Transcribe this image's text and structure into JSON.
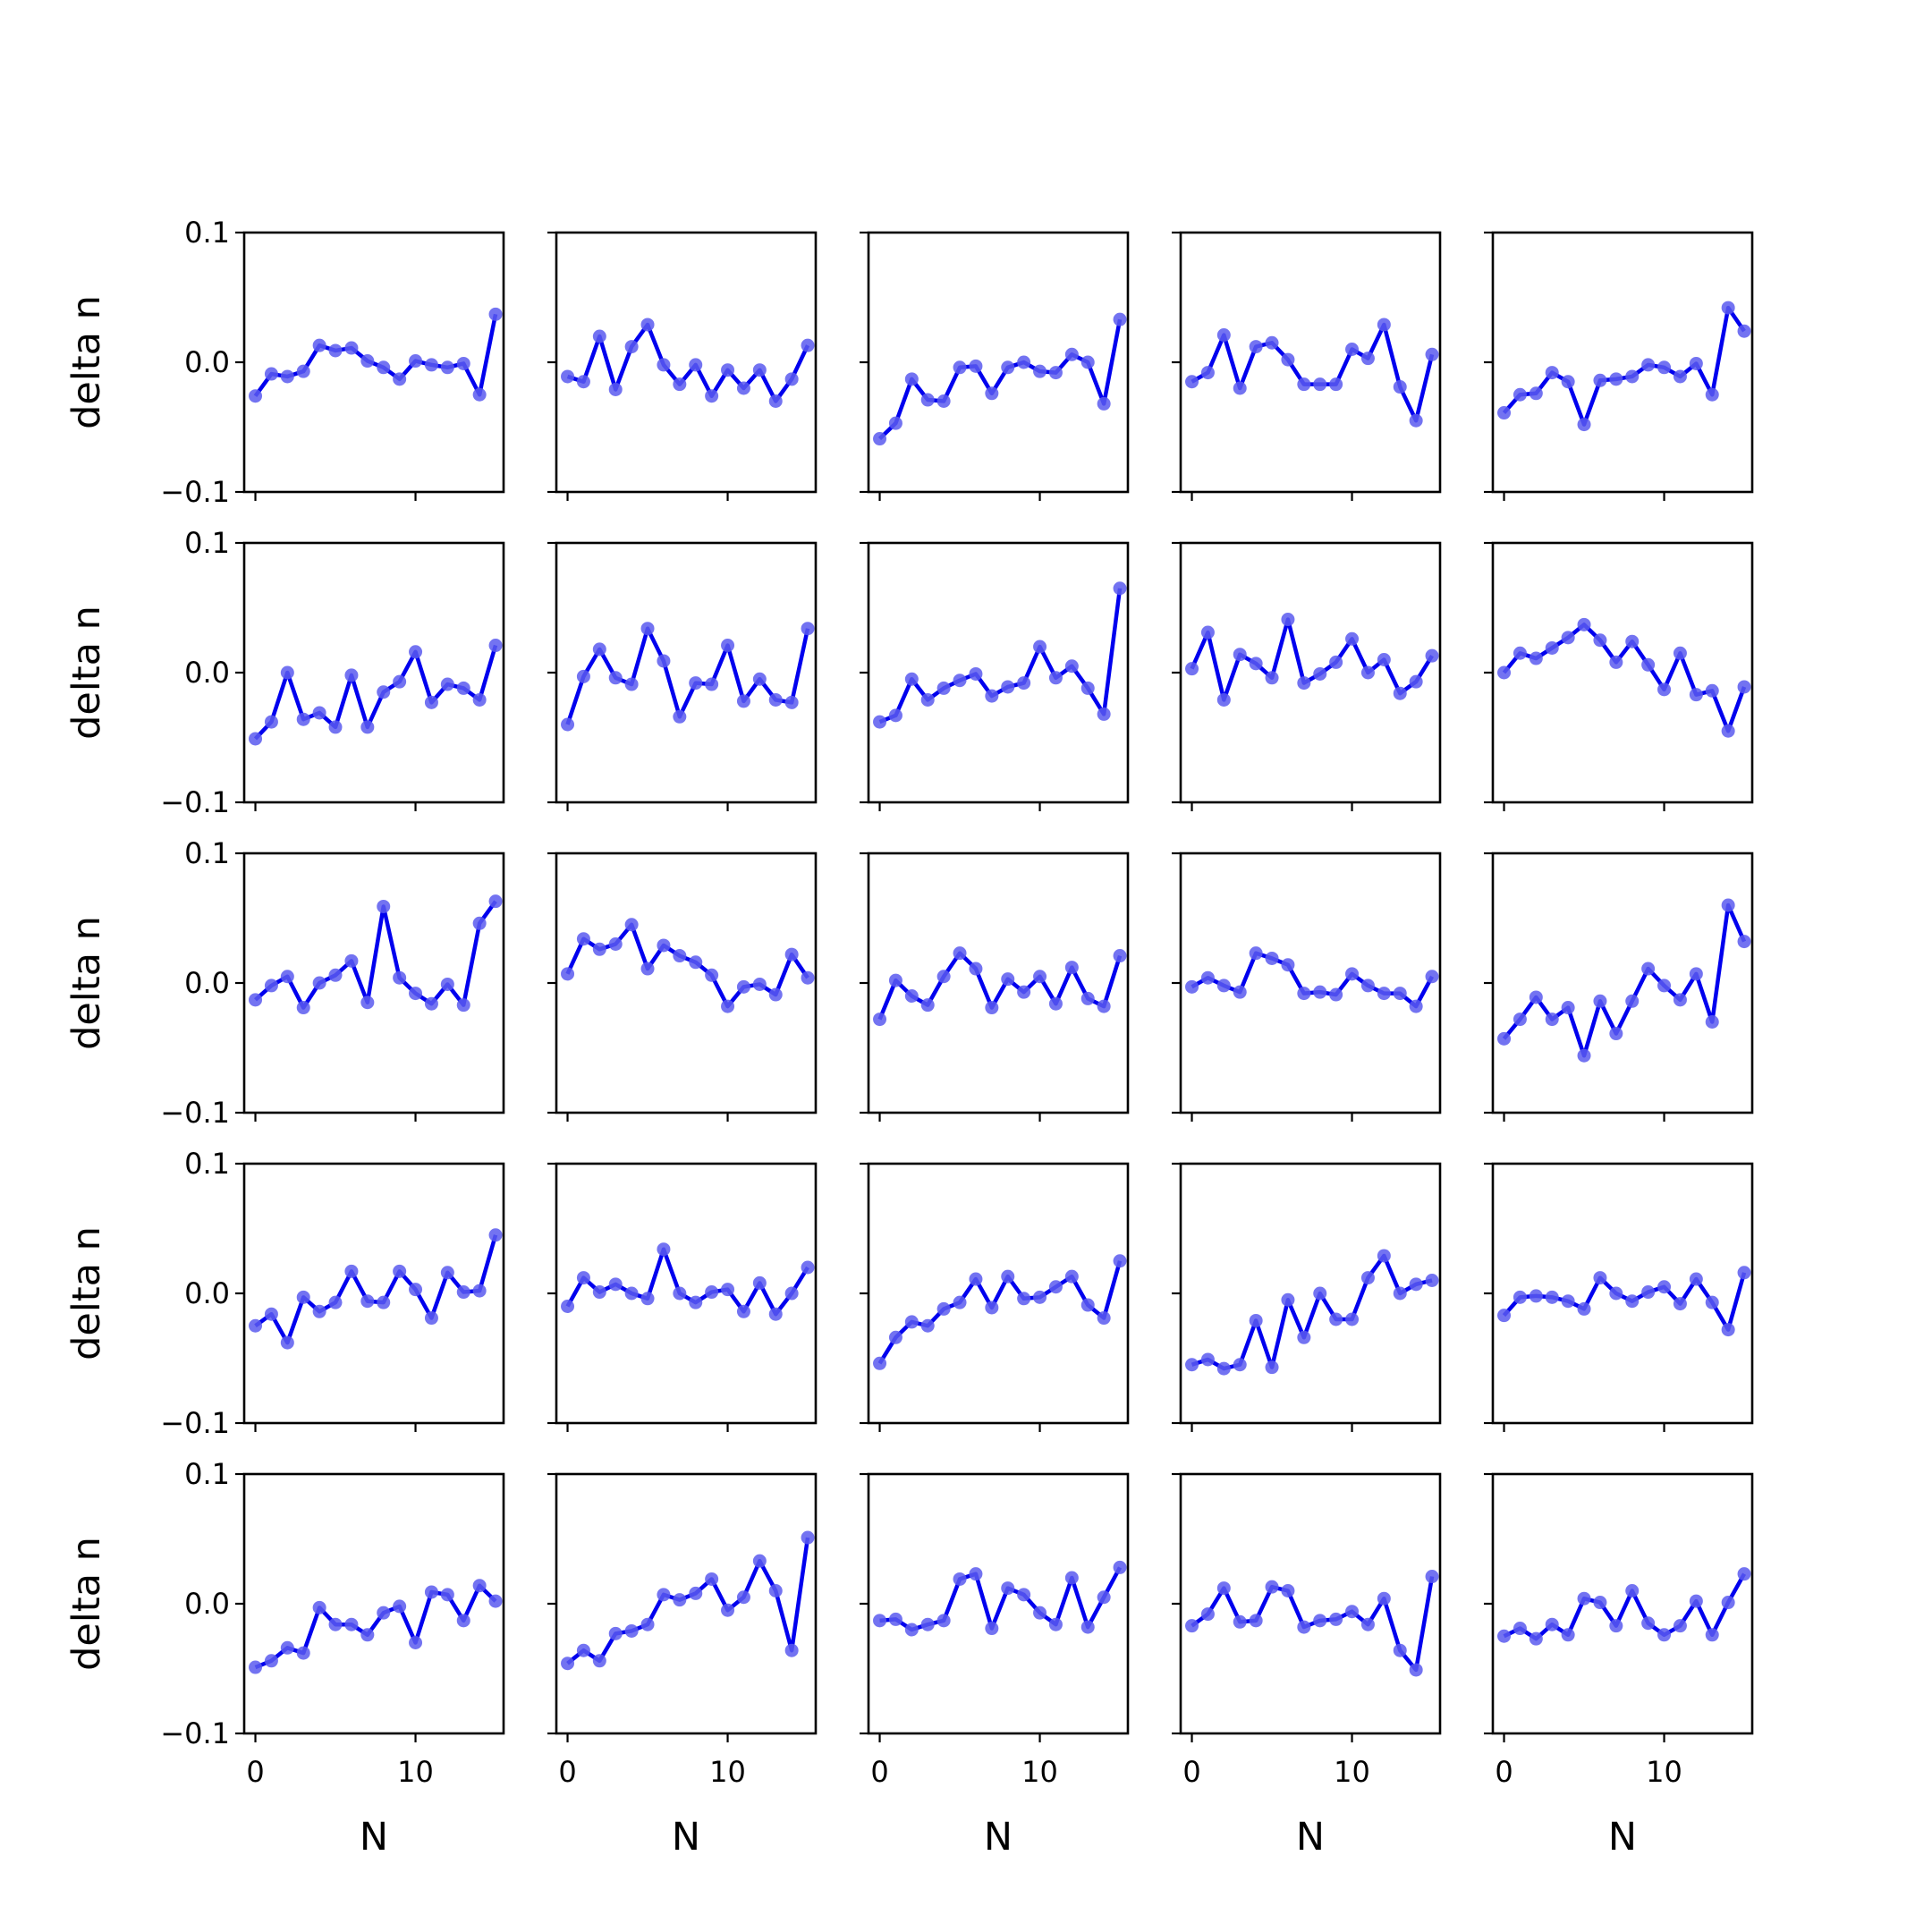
{
  "figure": {
    "rows": 5,
    "cols": 5,
    "ylabel": "delta n",
    "xlabel": "N",
    "line_color": "#0000ee",
    "marker_color": "#5b5bee",
    "xticks": [
      0,
      10
    ],
    "yticks": [
      -0.1,
      0.0,
      0.1
    ],
    "ytick_labels": [
      "−0.1",
      "0.0",
      "0.1"
    ]
  },
  "chart_data": {
    "type": "line",
    "layout": "5x5 small multiples, row-major order",
    "x": [
      0,
      1,
      2,
      3,
      4,
      5,
      6,
      7,
      8,
      9,
      10,
      11,
      12,
      13,
      14,
      15
    ],
    "xlim": [
      -0.7,
      15.5
    ],
    "ylim": [
      -0.1,
      0.1
    ],
    "xlabel": "N",
    "ylabel": "delta n",
    "series": [
      {
        "values": [
          -0.026,
          -0.009,
          -0.011,
          -0.007,
          0.013,
          0.009,
          0.011,
          0.001,
          -0.004,
          -0.013,
          0.001,
          -0.002,
          -0.004,
          -0.001,
          -0.025,
          0.037
        ]
      },
      {
        "values": [
          -0.011,
          -0.015,
          0.02,
          -0.021,
          0.012,
          0.029,
          -0.002,
          -0.017,
          -0.002,
          -0.026,
          -0.006,
          -0.02,
          -0.006,
          -0.03,
          -0.013,
          0.013
        ]
      },
      {
        "values": [
          -0.059,
          -0.047,
          -0.013,
          -0.029,
          -0.03,
          -0.004,
          -0.003,
          -0.024,
          -0.004,
          0.0,
          -0.007,
          -0.008,
          0.006,
          0.0,
          -0.032,
          0.033
        ]
      },
      {
        "values": [
          -0.015,
          -0.008,
          0.021,
          -0.02,
          0.012,
          0.015,
          0.002,
          -0.017,
          -0.017,
          -0.017,
          0.01,
          0.003,
          0.029,
          -0.019,
          -0.045,
          0.006
        ]
      },
      {
        "values": [
          -0.039,
          -0.025,
          -0.024,
          -0.008,
          -0.015,
          -0.048,
          -0.014,
          -0.013,
          -0.011,
          -0.002,
          -0.004,
          -0.011,
          -0.001,
          -0.025,
          0.042,
          0.024
        ]
      },
      {
        "values": [
          -0.051,
          -0.038,
          0.0,
          -0.036,
          -0.031,
          -0.042,
          -0.002,
          -0.042,
          -0.015,
          -0.007,
          0.016,
          -0.023,
          -0.009,
          -0.012,
          -0.021,
          0.021
        ]
      },
      {
        "values": [
          -0.04,
          -0.003,
          0.018,
          -0.004,
          -0.009,
          0.034,
          0.009,
          -0.034,
          -0.008,
          -0.009,
          0.021,
          -0.022,
          -0.005,
          -0.021,
          -0.023,
          0.034
        ]
      },
      {
        "values": [
          -0.038,
          -0.033,
          -0.005,
          -0.021,
          -0.012,
          -0.006,
          -0.001,
          -0.018,
          -0.011,
          -0.008,
          0.02,
          -0.004,
          0.005,
          -0.012,
          -0.032,
          0.065
        ]
      },
      {
        "values": [
          0.003,
          0.031,
          -0.021,
          0.014,
          0.007,
          -0.004,
          0.041,
          -0.008,
          -0.001,
          0.008,
          0.026,
          0.0,
          0.01,
          -0.016,
          -0.007,
          0.013
        ]
      },
      {
        "values": [
          0.0,
          0.015,
          0.011,
          0.019,
          0.027,
          0.037,
          0.025,
          0.008,
          0.024,
          0.006,
          -0.013,
          0.015,
          -0.017,
          -0.014,
          -0.045,
          -0.011
        ]
      },
      {
        "values": [
          -0.013,
          -0.002,
          0.005,
          -0.019,
          0.0,
          0.006,
          0.017,
          -0.015,
          0.059,
          0.004,
          -0.008,
          -0.016,
          -0.001,
          -0.017,
          0.046,
          0.063
        ]
      },
      {
        "values": [
          0.007,
          0.034,
          0.026,
          0.03,
          0.045,
          0.011,
          0.029,
          0.021,
          0.016,
          0.006,
          -0.018,
          -0.003,
          -0.001,
          -0.009,
          0.022,
          0.004
        ]
      },
      {
        "values": [
          -0.028,
          0.002,
          -0.01,
          -0.017,
          0.005,
          0.023,
          0.011,
          -0.019,
          0.003,
          -0.007,
          0.005,
          -0.016,
          0.012,
          -0.012,
          -0.018,
          0.021
        ]
      },
      {
        "values": [
          -0.003,
          0.004,
          -0.002,
          -0.007,
          0.023,
          0.019,
          0.014,
          -0.008,
          -0.007,
          -0.009,
          0.007,
          -0.002,
          -0.008,
          -0.008,
          -0.018,
          0.005
        ]
      },
      {
        "values": [
          -0.043,
          -0.028,
          -0.011,
          -0.028,
          -0.019,
          -0.056,
          -0.014,
          -0.039,
          -0.014,
          0.011,
          -0.002,
          -0.013,
          0.007,
          -0.03,
          0.06,
          0.032
        ]
      },
      {
        "values": [
          -0.025,
          -0.016,
          -0.038,
          -0.003,
          -0.014,
          -0.007,
          0.017,
          -0.006,
          -0.007,
          0.017,
          0.003,
          -0.019,
          0.016,
          0.001,
          0.002,
          0.045
        ]
      },
      {
        "values": [
          -0.01,
          0.012,
          0.001,
          0.007,
          0.0,
          -0.004,
          0.034,
          0.0,
          -0.007,
          0.001,
          0.003,
          -0.014,
          0.008,
          -0.016,
          0.0,
          0.02
        ]
      },
      {
        "values": [
          -0.054,
          -0.034,
          -0.022,
          -0.025,
          -0.012,
          -0.007,
          0.011,
          -0.011,
          0.013,
          -0.004,
          -0.003,
          0.005,
          0.013,
          -0.009,
          -0.019,
          0.025
        ]
      },
      {
        "values": [
          -0.055,
          -0.051,
          -0.058,
          -0.055,
          -0.021,
          -0.057,
          -0.005,
          -0.034,
          0.0,
          -0.02,
          -0.02,
          0.012,
          0.029,
          0.0,
          0.007,
          0.01
        ]
      },
      {
        "values": [
          -0.017,
          -0.003,
          -0.002,
          -0.003,
          -0.006,
          -0.012,
          0.012,
          0.0,
          -0.006,
          0.001,
          0.005,
          -0.008,
          0.011,
          -0.007,
          -0.028,
          0.016
        ]
      },
      {
        "values": [
          -0.049,
          -0.044,
          -0.034,
          -0.038,
          -0.003,
          -0.016,
          -0.016,
          -0.024,
          -0.007,
          -0.002,
          -0.03,
          0.009,
          0.007,
          -0.013,
          0.014,
          0.002
        ]
      },
      {
        "values": [
          -0.046,
          -0.036,
          -0.044,
          -0.023,
          -0.021,
          -0.016,
          0.007,
          0.003,
          0.008,
          0.019,
          -0.005,
          0.005,
          0.033,
          0.01,
          -0.036,
          0.051
        ]
      },
      {
        "values": [
          -0.013,
          -0.012,
          -0.02,
          -0.016,
          -0.013,
          0.019,
          0.023,
          -0.019,
          0.012,
          0.007,
          -0.007,
          -0.016,
          0.02,
          -0.018,
          0.005,
          0.028
        ]
      },
      {
        "values": [
          -0.017,
          -0.008,
          0.012,
          -0.014,
          -0.013,
          0.013,
          0.01,
          -0.018,
          -0.013,
          -0.012,
          -0.006,
          -0.016,
          0.004,
          -0.036,
          -0.051,
          0.021
        ]
      },
      {
        "values": [
          -0.025,
          -0.019,
          -0.027,
          -0.016,
          -0.024,
          0.004,
          0.001,
          -0.017,
          0.01,
          -0.015,
          -0.024,
          -0.017,
          0.002,
          -0.024,
          0.001,
          0.023
        ]
      }
    ]
  }
}
